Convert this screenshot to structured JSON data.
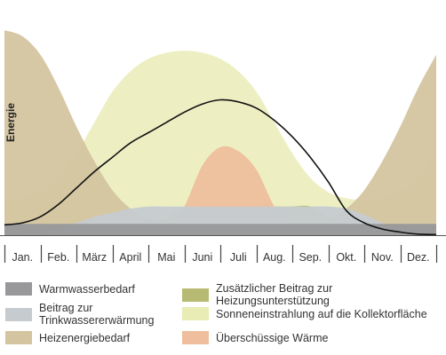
{
  "chart_data": {
    "type": "area",
    "ylabel": "Energie",
    "xlabel": "",
    "categories": [
      "Jan.",
      "Feb.",
      "März",
      "April",
      "Mai",
      "Juni",
      "Juli",
      "Aug.",
      "Sep.",
      "Okt.",
      "Nov.",
      "Dez."
    ],
    "ylim": [
      0,
      100
    ],
    "grid": false,
    "legend_position": "bottom",
    "x": [
      0,
      0.5,
      1,
      1.5,
      2,
      2.5,
      3,
      3.5,
      4,
      4.5,
      5,
      5.5,
      6,
      6.5,
      7,
      7.5,
      8,
      8.5,
      9,
      9.5,
      10,
      10.5,
      11,
      11.5,
      12
    ],
    "series": [
      {
        "name": "Warmwasserbedarf",
        "color": "#98989a",
        "values": [
          5.5,
          5.5,
          5.5,
          5.5,
          5.5,
          5.5,
          5.5,
          5.5,
          5.5,
          5.5,
          5.5,
          5.5,
          5.5,
          5.5,
          5.5,
          5.5,
          5.5,
          5.5,
          5.5,
          5.5,
          5.5,
          5.5,
          5.5,
          5.5,
          5.5
        ]
      },
      {
        "name": "Beitrag zur\nTrinkwassererwärmung",
        "color": "#c6cbd0",
        "values": [
          0.5,
          0.8,
          1.5,
          3,
          6,
          9,
          11,
          13,
          14,
          14,
          14,
          14,
          14,
          14,
          14,
          14,
          14,
          14,
          14,
          13,
          10,
          6,
          3,
          1.5,
          0.5
        ]
      },
      {
        "name": "Heizenergiebedarf",
        "color": "#d4c4a0",
        "values": [
          100,
          97,
          88,
          72,
          53,
          36,
          22,
          13,
          8,
          8,
          8,
          8,
          8,
          8,
          8,
          8,
          8,
          8,
          8,
          13,
          22,
          36,
          53,
          72,
          88
        ]
      },
      {
        "name": "Zusätzlicher Beitrag zur Heizungsunterstützung",
        "color": "#b7ba72",
        "values": [
          0,
          0,
          0,
          0,
          0,
          0,
          0,
          0.5,
          3,
          8,
          13,
          14,
          14,
          14,
          14,
          14,
          14,
          14,
          9,
          3,
          0.5,
          0,
          0,
          0,
          0
        ]
      },
      {
        "name": "Sonneneinstrahlung auf die Kollektorfläche",
        "color": "#e9ecb4",
        "values": [
          17,
          18,
          21,
          28,
          40,
          55,
          70,
          80,
          86,
          89,
          90,
          89,
          86,
          80,
          70,
          55,
          40,
          28,
          21,
          18,
          17,
          18,
          21,
          28,
          40
        ]
      },
      {
        "name": "Überschüssige Wärme",
        "color": "#eebe9d",
        "values": [
          0,
          0,
          0,
          0,
          0,
          0,
          0,
          0,
          0,
          2,
          14,
          34,
          43,
          41,
          32,
          14,
          2,
          0,
          0,
          0,
          0,
          0,
          0,
          0,
          0
        ]
      }
    ],
    "kollektorertrag_line": {
      "color": "#111111",
      "values": [
        5,
        6,
        9,
        15,
        23,
        31,
        38,
        45,
        50,
        55,
        60,
        64,
        66,
        65,
        62,
        56,
        48,
        38,
        26,
        12,
        6,
        3,
        1.5,
        0.5,
        0.3
      ]
    }
  }
}
